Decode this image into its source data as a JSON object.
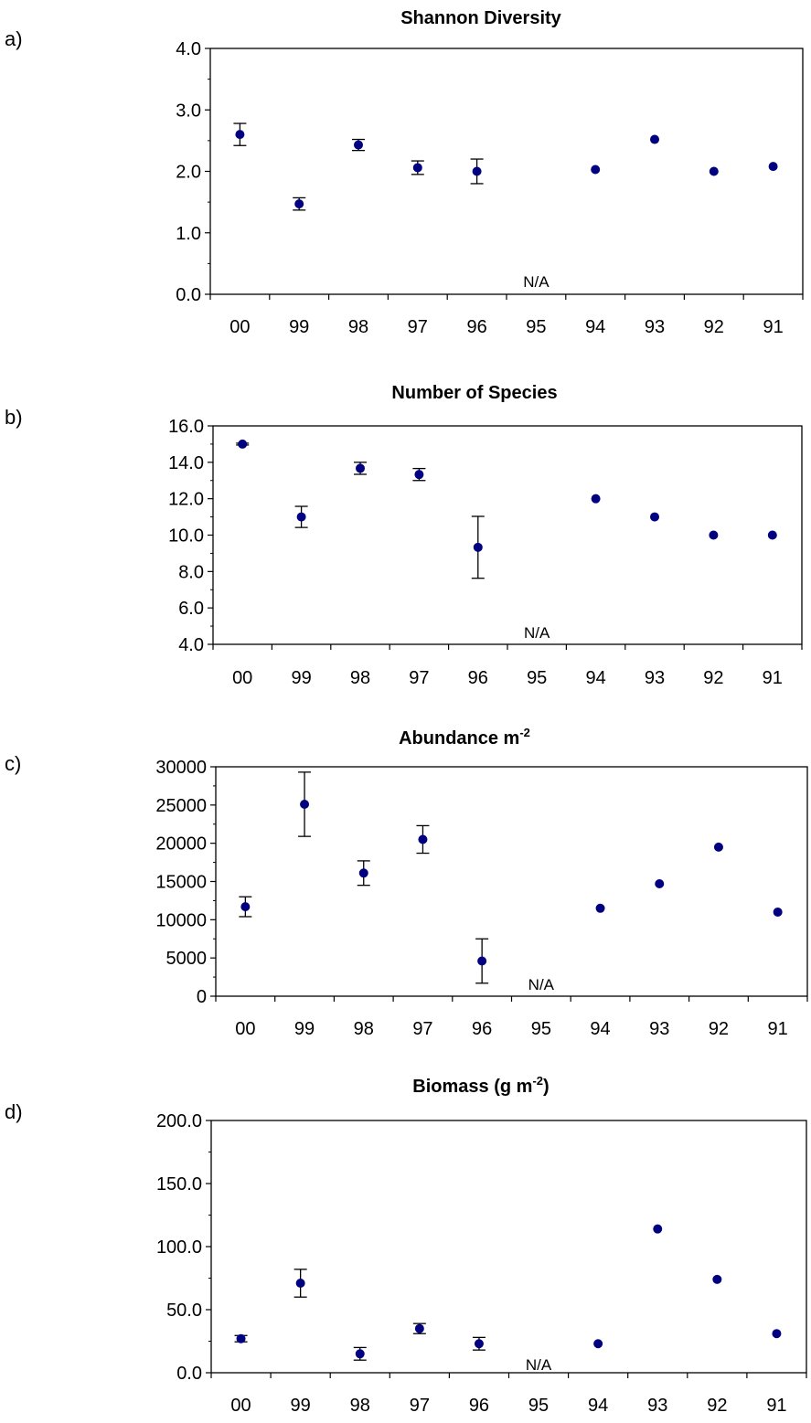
{
  "chart_data": [
    {
      "type": "scatter",
      "panel_label": "a)",
      "title": "Shannon Diversity",
      "categories": [
        "00",
        "99",
        "98",
        "97",
        "96",
        "95",
        "94",
        "93",
        "92",
        "91"
      ],
      "values": [
        2.6,
        1.47,
        2.43,
        2.06,
        2.0,
        null,
        2.03,
        2.52,
        2.0,
        2.08
      ],
      "errors": [
        0.18,
        0.1,
        0.09,
        0.11,
        0.2,
        null,
        null,
        null,
        null,
        null
      ],
      "ylim": [
        0,
        4
      ],
      "yticks": [
        "0.0",
        "1.0",
        "2.0",
        "3.0",
        "4.0"
      ],
      "annotation": "N/A",
      "annotation_category": "95"
    },
    {
      "type": "scatter",
      "panel_label": "b)",
      "title": "Number of Species",
      "categories": [
        "00",
        "99",
        "98",
        "97",
        "96",
        "95",
        "94",
        "93",
        "92",
        "91"
      ],
      "values": [
        15.0,
        11.0,
        13.67,
        13.33,
        9.33,
        null,
        12.0,
        11.0,
        10.0,
        10.0
      ],
      "errors": [
        0.05,
        0.58,
        0.33,
        0.33,
        1.7,
        null,
        null,
        null,
        null,
        null
      ],
      "ylim": [
        4,
        16
      ],
      "yticks": [
        "4.0",
        "6.0",
        "8.0",
        "10.0",
        "12.0",
        "14.0",
        "16.0"
      ],
      "annotation": "N/A",
      "annotation_category": "95"
    },
    {
      "type": "scatter",
      "panel_label": "c)",
      "title": "Abundance m",
      "title_sup": "-2",
      "categories": [
        "00",
        "99",
        "98",
        "97",
        "96",
        "95",
        "94",
        "93",
        "92",
        "91"
      ],
      "values": [
        11700,
        25100,
        16100,
        20500,
        4600,
        null,
        11500,
        14700,
        19500,
        11000
      ],
      "errors": [
        1300,
        4200,
        1600,
        1800,
        2900,
        null,
        null,
        null,
        null,
        null
      ],
      "ylim": [
        0,
        30000
      ],
      "yticks": [
        "0",
        "5000",
        "10000",
        "15000",
        "20000",
        "25000",
        "30000"
      ],
      "annotation": "N/A",
      "annotation_category": "95"
    },
    {
      "type": "scatter",
      "panel_label": "d)",
      "title": "Biomass (g m",
      "title_sup": "-2",
      "title_end": ")",
      "categories": [
        "00",
        "99",
        "98",
        "97",
        "96",
        "95",
        "94",
        "93",
        "92",
        "91"
      ],
      "values": [
        27,
        71,
        15,
        35,
        23,
        null,
        23,
        114,
        74,
        31
      ],
      "errors": [
        2.5,
        11,
        5,
        4,
        5,
        null,
        null,
        null,
        null,
        null
      ],
      "ylim": [
        0,
        200
      ],
      "yticks": [
        "0.0",
        "50.0",
        "100.0",
        "150.0",
        "200.0"
      ],
      "annotation": "N/A",
      "annotation_category": "95"
    }
  ],
  "colors": {
    "marker": "#000080",
    "axis": "#000000"
  }
}
